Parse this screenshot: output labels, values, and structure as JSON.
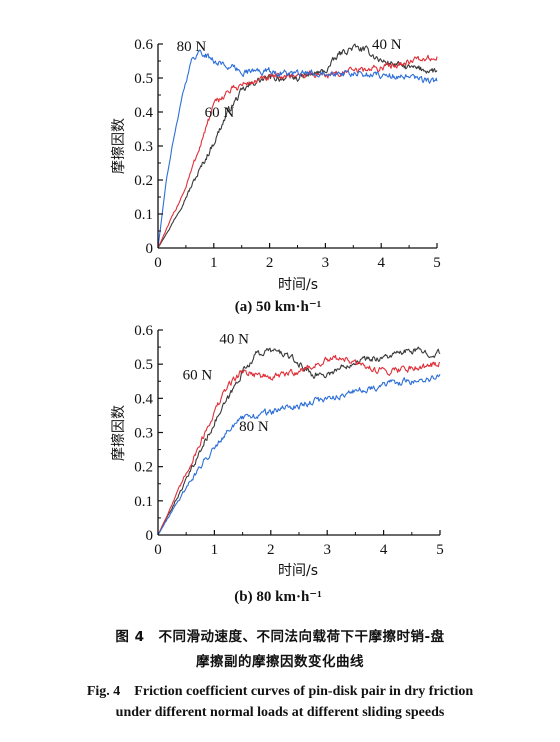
{
  "figure": {
    "caption_cn_line1": "图 4　不同滑动速度、不同法向载荷下干摩擦时销-盘",
    "caption_cn_line2": "摩擦副的摩擦因数变化曲线",
    "caption_en_line1": "Fig. 4　Friction coefficient curves of pin-disk pair in dry friction",
    "caption_en_line2": "under different normal loads at different sliding speeds"
  },
  "colors": {
    "40N": "#3a3a3a",
    "60N": "#e0303a",
    "80N": "#2e6fd8",
    "axis": "#111111"
  },
  "chart_data": [
    {
      "type": "line",
      "subcaption": "(a) 50 km·h⁻¹",
      "xlabel": "时间/s",
      "ylabel": "摩擦因数",
      "xlim": [
        0,
        5
      ],
      "ylim": [
        0,
        0.6
      ],
      "xticks": [
        "0",
        "1",
        "2",
        "3",
        "4",
        "5"
      ],
      "yticks": [
        "0",
        "0.1",
        "0.2",
        "0.3",
        "0.4",
        "0.5",
        "0.6"
      ],
      "grid": false,
      "series": [
        {
          "name": "40 N",
          "color": "#3a3a3a",
          "x": [
            0,
            0.25,
            0.5,
            0.75,
            1.0,
            1.25,
            1.5,
            1.75,
            2.0,
            2.5,
            3.0,
            3.25,
            3.5,
            3.75,
            4.0,
            4.5,
            5.0
          ],
          "y": [
            0.0,
            0.07,
            0.15,
            0.23,
            0.31,
            0.4,
            0.46,
            0.49,
            0.5,
            0.5,
            0.52,
            0.57,
            0.59,
            0.58,
            0.55,
            0.53,
            0.52
          ]
        },
        {
          "name": "60 N",
          "color": "#e0303a",
          "x": [
            0,
            0.25,
            0.5,
            0.75,
            1.0,
            1.25,
            1.5,
            1.75,
            2.0,
            2.5,
            3.0,
            3.5,
            4.0,
            4.5,
            5.0
          ],
          "y": [
            0.0,
            0.09,
            0.18,
            0.3,
            0.42,
            0.46,
            0.48,
            0.49,
            0.5,
            0.51,
            0.51,
            0.52,
            0.53,
            0.55,
            0.56
          ]
        },
        {
          "name": "80 N",
          "color": "#2e6fd8",
          "x": [
            0,
            0.15,
            0.3,
            0.45,
            0.6,
            0.75,
            1.0,
            1.5,
            2.0,
            2.5,
            3.0,
            3.5,
            4.0,
            4.5,
            5.0
          ],
          "y": [
            0.0,
            0.2,
            0.34,
            0.46,
            0.55,
            0.58,
            0.55,
            0.52,
            0.52,
            0.51,
            0.52,
            0.51,
            0.51,
            0.5,
            0.49
          ]
        }
      ],
      "annotations": [
        {
          "text": "80 N",
          "x": 0.6,
          "y": 0.58
        },
        {
          "text": "40 N",
          "x": 4.1,
          "y": 0.585
        },
        {
          "text": "60 N",
          "x": 1.1,
          "y": 0.385
        }
      ]
    },
    {
      "type": "line",
      "subcaption": "(b) 80 km·h⁻¹",
      "xlabel": "时间/s",
      "ylabel": "摩擦因数",
      "xlim": [
        0,
        5
      ],
      "ylim": [
        0,
        0.6
      ],
      "xticks": [
        "0",
        "1",
        "2",
        "3",
        "4",
        "5"
      ],
      "yticks": [
        "0",
        "0.1",
        "0.2",
        "0.3",
        "0.4",
        "0.5",
        "0.6"
      ],
      "grid": false,
      "series": [
        {
          "name": "40 N",
          "color": "#3a3a3a",
          "x": [
            0,
            0.5,
            1.0,
            1.25,
            1.5,
            1.75,
            2.0,
            2.25,
            2.5,
            2.75,
            3.0,
            3.25,
            3.5,
            4.0,
            4.5,
            5.0
          ],
          "y": [
            0.0,
            0.16,
            0.33,
            0.4,
            0.48,
            0.53,
            0.54,
            0.53,
            0.5,
            0.47,
            0.47,
            0.49,
            0.51,
            0.52,
            0.54,
            0.53
          ]
        },
        {
          "name": "60 N",
          "color": "#e0303a",
          "x": [
            0,
            0.5,
            1.0,
            1.25,
            1.5,
            1.75,
            2.0,
            2.25,
            2.5,
            3.0,
            3.25,
            3.5,
            4.0,
            4.5,
            5.0
          ],
          "y": [
            0.0,
            0.18,
            0.36,
            0.44,
            0.48,
            0.47,
            0.46,
            0.47,
            0.48,
            0.51,
            0.52,
            0.5,
            0.48,
            0.49,
            0.5
          ]
        },
        {
          "name": "80 N",
          "color": "#2e6fd8",
          "x": [
            0,
            0.5,
            1.0,
            1.25,
            1.5,
            1.75,
            2.0,
            2.5,
            3.0,
            3.5,
            4.0,
            4.5,
            5.0
          ],
          "y": [
            0.0,
            0.14,
            0.26,
            0.31,
            0.34,
            0.35,
            0.36,
            0.38,
            0.4,
            0.42,
            0.44,
            0.45,
            0.46
          ]
        }
      ],
      "annotations": [
        {
          "text": "40 N",
          "x": 1.35,
          "y": 0.56
        },
        {
          "text": "60 N",
          "x": 0.7,
          "y": 0.455
        },
        {
          "text": "80 N",
          "x": 1.7,
          "y": 0.305
        }
      ]
    }
  ]
}
